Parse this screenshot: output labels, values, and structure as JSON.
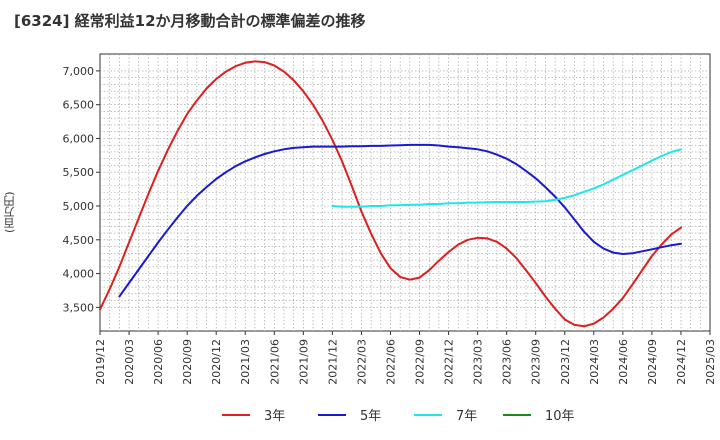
{
  "chart_data": {
    "type": "line",
    "title": "[6324]  経常利益12か月移動合計の標準偏差の推移",
    "ylabel": "(百万円)",
    "xlabel": "",
    "x_ticks": [
      "2019/12",
      "2020/03",
      "2020/06",
      "2020/09",
      "2020/12",
      "2021/03",
      "2021/06",
      "2021/09",
      "2021/12",
      "2022/03",
      "2022/06",
      "2022/09",
      "2022/12",
      "2023/03",
      "2023/06",
      "2023/09",
      "2023/12",
      "2024/03",
      "2024/06",
      "2024/09",
      "2024/12",
      "2025/03"
    ],
    "y_ticks": [
      "3,500",
      "4,000",
      "4,500",
      "5,000",
      "5,500",
      "6,000",
      "6,500",
      "7,000"
    ],
    "ylim": [
      3150,
      7250
    ],
    "grid": true,
    "legend_position": "bottom",
    "series": [
      {
        "name": "3年",
        "color": "#dd1f1f",
        "points": [
          [
            "2019/12",
            3470
          ],
          [
            "2020/01",
            3770
          ],
          [
            "2020/02",
            4100
          ],
          [
            "2020/03",
            4460
          ],
          [
            "2020/04",
            4820
          ],
          [
            "2020/05",
            5180
          ],
          [
            "2020/06",
            5520
          ],
          [
            "2020/07",
            5830
          ],
          [
            "2020/08",
            6110
          ],
          [
            "2020/09",
            6360
          ],
          [
            "2020/10",
            6560
          ],
          [
            "2020/11",
            6740
          ],
          [
            "2020/12",
            6880
          ],
          [
            "2021/01",
            6990
          ],
          [
            "2021/02",
            7070
          ],
          [
            "2021/03",
            7120
          ],
          [
            "2021/04",
            7140
          ],
          [
            "2021/05",
            7130
          ],
          [
            "2021/06",
            7080
          ],
          [
            "2021/07",
            6990
          ],
          [
            "2021/08",
            6860
          ],
          [
            "2021/09",
            6700
          ],
          [
            "2021/10",
            6500
          ],
          [
            "2021/11",
            6260
          ],
          [
            "2021/12",
            5980
          ],
          [
            "2022/01",
            5660
          ],
          [
            "2022/02",
            5300
          ],
          [
            "2022/03",
            4920
          ],
          [
            "2022/04",
            4590
          ],
          [
            "2022/05",
            4300
          ],
          [
            "2022/06",
            4080
          ],
          [
            "2022/07",
            3950
          ],
          [
            "2022/08",
            3910
          ],
          [
            "2022/09",
            3940
          ],
          [
            "2022/10",
            4050
          ],
          [
            "2022/11",
            4190
          ],
          [
            "2022/12",
            4320
          ],
          [
            "2023/01",
            4430
          ],
          [
            "2023/02",
            4500
          ],
          [
            "2023/03",
            4530
          ],
          [
            "2023/04",
            4520
          ],
          [
            "2023/05",
            4470
          ],
          [
            "2023/06",
            4370
          ],
          [
            "2023/07",
            4230
          ],
          [
            "2023/08",
            4050
          ],
          [
            "2023/09",
            3860
          ],
          [
            "2023/10",
            3660
          ],
          [
            "2023/11",
            3480
          ],
          [
            "2023/12",
            3320
          ],
          [
            "2024/01",
            3240
          ],
          [
            "2024/02",
            3220
          ],
          [
            "2024/03",
            3260
          ],
          [
            "2024/04",
            3350
          ],
          [
            "2024/05",
            3480
          ],
          [
            "2024/06",
            3640
          ],
          [
            "2024/07",
            3840
          ],
          [
            "2024/08",
            4050
          ],
          [
            "2024/09",
            4260
          ],
          [
            "2024/10",
            4430
          ],
          [
            "2024/11",
            4580
          ],
          [
            "2024/12",
            4680
          ]
        ]
      },
      {
        "name": "5年",
        "color": "#1a1ad0",
        "points": [
          [
            "2020/02",
            3660
          ],
          [
            "2020/03",
            3860
          ],
          [
            "2020/04",
            4060
          ],
          [
            "2020/05",
            4260
          ],
          [
            "2020/06",
            4460
          ],
          [
            "2020/07",
            4650
          ],
          [
            "2020/08",
            4830
          ],
          [
            "2020/09",
            5000
          ],
          [
            "2020/10",
            5150
          ],
          [
            "2020/11",
            5280
          ],
          [
            "2020/12",
            5400
          ],
          [
            "2021/01",
            5500
          ],
          [
            "2021/02",
            5590
          ],
          [
            "2021/03",
            5660
          ],
          [
            "2021/04",
            5720
          ],
          [
            "2021/05",
            5770
          ],
          [
            "2021/06",
            5810
          ],
          [
            "2021/07",
            5840
          ],
          [
            "2021/08",
            5860
          ],
          [
            "2021/09",
            5870
          ],
          [
            "2021/10",
            5880
          ],
          [
            "2021/11",
            5880
          ],
          [
            "2021/12",
            5880
          ],
          [
            "2022/01",
            5880
          ],
          [
            "2022/02",
            5885
          ],
          [
            "2022/03",
            5885
          ],
          [
            "2022/04",
            5890
          ],
          [
            "2022/05",
            5890
          ],
          [
            "2022/06",
            5895
          ],
          [
            "2022/07",
            5900
          ],
          [
            "2022/08",
            5905
          ],
          [
            "2022/09",
            5905
          ],
          [
            "2022/10",
            5905
          ],
          [
            "2022/11",
            5895
          ],
          [
            "2022/12",
            5880
          ],
          [
            "2023/01",
            5870
          ],
          [
            "2023/02",
            5855
          ],
          [
            "2023/03",
            5840
          ],
          [
            "2023/04",
            5810
          ],
          [
            "2023/05",
            5760
          ],
          [
            "2023/06",
            5700
          ],
          [
            "2023/07",
            5620
          ],
          [
            "2023/08",
            5520
          ],
          [
            "2023/09",
            5410
          ],
          [
            "2023/10",
            5280
          ],
          [
            "2023/11",
            5140
          ],
          [
            "2023/12",
            4980
          ],
          [
            "2024/01",
            4800
          ],
          [
            "2024/02",
            4620
          ],
          [
            "2024/03",
            4470
          ],
          [
            "2024/04",
            4370
          ],
          [
            "2024/05",
            4310
          ],
          [
            "2024/06",
            4290
          ],
          [
            "2024/07",
            4300
          ],
          [
            "2024/08",
            4330
          ],
          [
            "2024/09",
            4360
          ],
          [
            "2024/10",
            4390
          ],
          [
            "2024/11",
            4420
          ],
          [
            "2024/12",
            4440
          ]
        ]
      },
      {
        "name": "7年",
        "color": "#22e5e5",
        "points": [
          [
            "2021/12",
            5000
          ],
          [
            "2022/01",
            4990
          ],
          [
            "2022/02",
            4990
          ],
          [
            "2022/03",
            4990
          ],
          [
            "2022/04",
            5000
          ],
          [
            "2022/05",
            5000
          ],
          [
            "2022/06",
            5010
          ],
          [
            "2022/07",
            5010
          ],
          [
            "2022/08",
            5020
          ],
          [
            "2022/09",
            5020
          ],
          [
            "2022/10",
            5030
          ],
          [
            "2022/11",
            5030
          ],
          [
            "2022/12",
            5040
          ],
          [
            "2023/01",
            5040
          ],
          [
            "2023/02",
            5050
          ],
          [
            "2023/03",
            5050
          ],
          [
            "2023/04",
            5055
          ],
          [
            "2023/05",
            5060
          ],
          [
            "2023/06",
            5060
          ],
          [
            "2023/07",
            5060
          ],
          [
            "2023/08",
            5060
          ],
          [
            "2023/09",
            5065
          ],
          [
            "2023/10",
            5070
          ],
          [
            "2023/11",
            5090
          ],
          [
            "2023/12",
            5120
          ],
          [
            "2024/01",
            5160
          ],
          [
            "2024/02",
            5210
          ],
          [
            "2024/03",
            5260
          ],
          [
            "2024/04",
            5320
          ],
          [
            "2024/05",
            5390
          ],
          [
            "2024/06",
            5460
          ],
          [
            "2024/07",
            5530
          ],
          [
            "2024/08",
            5600
          ],
          [
            "2024/09",
            5670
          ],
          [
            "2024/10",
            5740
          ],
          [
            "2024/11",
            5800
          ],
          [
            "2024/12",
            5840
          ]
        ]
      },
      {
        "name": "10年",
        "color": "#1a8a1a",
        "points": []
      }
    ]
  }
}
